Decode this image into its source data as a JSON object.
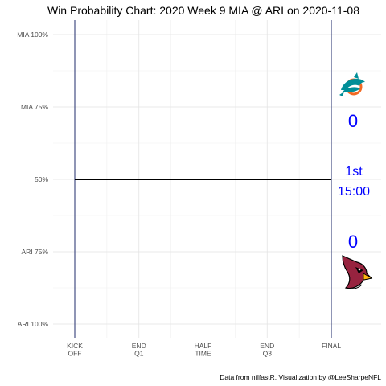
{
  "chart_data": {
    "type": "line",
    "title": "Win Probability Chart: 2020 Week 9 MIA @ ARI on 2020-11-08",
    "caption": "Data from nflfastR, Visualization by @LeeSharpeNFL",
    "x_ticks": [
      "KICK\nOFF",
      "END\nQ1",
      "HALF\nTIME",
      "END\nQ3",
      "FINAL"
    ],
    "y_ticks": [
      {
        "label": "MIA 100%",
        "value": 1.0
      },
      {
        "label": "MIA 75%",
        "value": 0.75
      },
      {
        "label": "50%",
        "value": 0.5
      },
      {
        "label": "ARI 75%",
        "value": 0.25
      },
      {
        "label": "ARI 100%",
        "value": 0.0
      }
    ],
    "ylim": [
      0,
      1
    ],
    "grid": true,
    "series": [
      {
        "x": [
          0,
          4
        ],
        "y": [
          0.5,
          0.5
        ],
        "color": "#000000"
      }
    ],
    "vlines": [
      0,
      4
    ],
    "vline_color": "#1f2b6b",
    "teams": {
      "home": {
        "abbr": "ARI",
        "score": "0",
        "logo": "cardinals-logo-icon"
      },
      "away": {
        "abbr": "MIA",
        "score": "0",
        "logo": "dolphins-logo-icon"
      }
    },
    "game_clock": {
      "quarter": "1st",
      "time": "15:00"
    },
    "text_color": "#0000ff"
  }
}
